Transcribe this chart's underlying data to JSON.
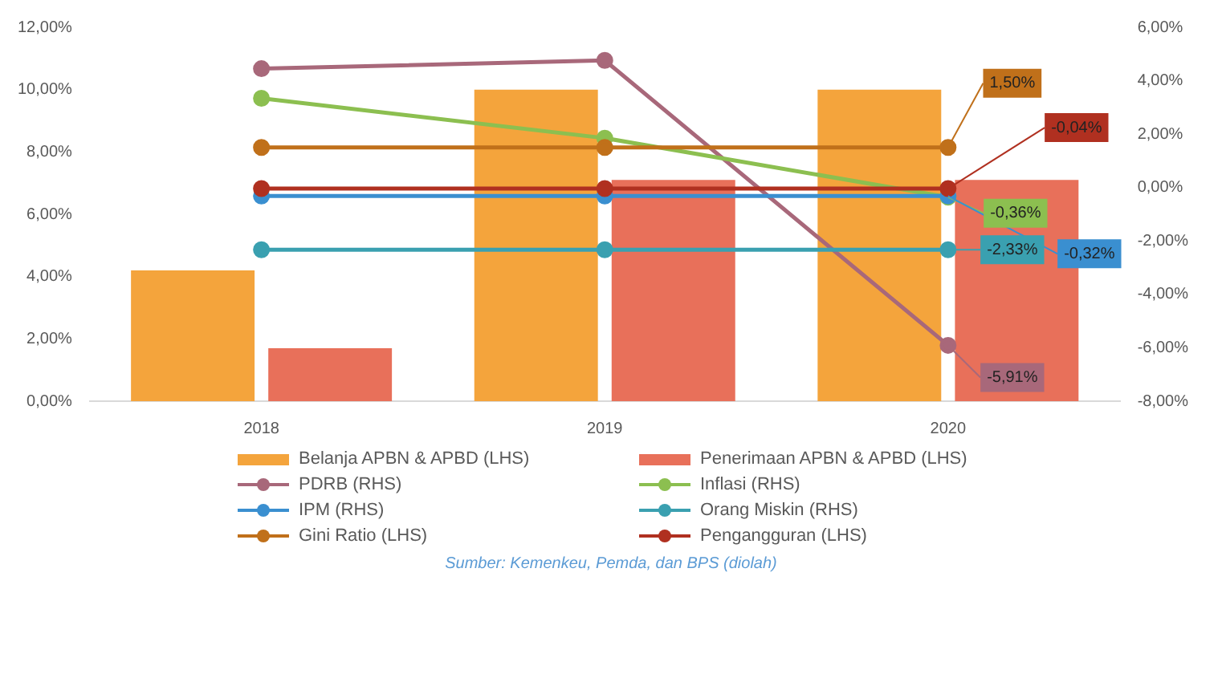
{
  "chart_data": {
    "type": "bar",
    "categories": [
      "2018",
      "2019",
      "2020"
    ],
    "series": [
      {
        "name": "Belanja APBN & APBD (LHS)",
        "color": "#f4a43c",
        "values": [
          4.2,
          10.0,
          10.0
        ]
      },
      {
        "name": "Penerimaan APBN & APBD (LHS)",
        "color": "#e8705a",
        "values": [
          1.7,
          7.1,
          7.1
        ]
      },
      {
        "name": "PDRB (RHS)",
        "type": "line",
        "axis": "y2",
        "color": "#a8687a",
        "values": [
          4.45,
          4.76,
          -5.91
        ],
        "value_labels": [
          null,
          null,
          "-5,91%"
        ]
      },
      {
        "name": "Inflasi (RHS)",
        "type": "line",
        "axis": "y2",
        "color": "#8cbf50",
        "values": [
          3.34,
          1.85,
          -0.36
        ],
        "value_labels": [
          null,
          null,
          "-0,36%"
        ]
      },
      {
        "name": "IPM (RHS)",
        "type": "line",
        "axis": "y2",
        "color": "#3a8fd0",
        "values": [
          -0.32,
          -0.32,
          -0.32
        ],
        "value_labels": [
          null,
          null,
          "-0,32%"
        ]
      },
      {
        "name": "Orang Miskin (RHS)",
        "type": "line",
        "axis": "y2",
        "color": "#3aa0b0",
        "values": [
          -2.33,
          -2.33,
          -2.33
        ],
        "value_labels": [
          null,
          null,
          "-2,33%"
        ]
      },
      {
        "name": "Gini Ratio (LHS)",
        "type": "line",
        "axis": "y2",
        "color": "#c0701a",
        "values": [
          1.5,
          1.5,
          1.5
        ],
        "value_labels": [
          null,
          null,
          "1,50%"
        ]
      },
      {
        "name": "Pengangguran (LHS)",
        "type": "line",
        "axis": "y2",
        "color": "#b03020",
        "values": [
          -0.04,
          -0.04,
          -0.04
        ],
        "value_labels": [
          null,
          null,
          "-0,04%"
        ]
      }
    ],
    "ylim": [
      0,
      12
    ],
    "yticks": [
      {
        "value": 0,
        "label": "0,00%"
      },
      {
        "value": 2,
        "label": "2,00%"
      },
      {
        "value": 4,
        "label": "4,00%"
      },
      {
        "value": 6,
        "label": "6,00%"
      },
      {
        "value": 8,
        "label": "8,00%"
      },
      {
        "value": 10,
        "label": "10,00%"
      },
      {
        "value": 12,
        "label": "12,00%"
      }
    ],
    "y2lim": [
      -8,
      6
    ],
    "y2ticks": [
      {
        "value": -8,
        "label": "-8,00%"
      },
      {
        "value": -6,
        "label": "-6,00%"
      },
      {
        "value": -4,
        "label": "-4,00%"
      },
      {
        "value": -2,
        "label": "-2,00%"
      },
      {
        "value": 0,
        "label": "0,00%"
      },
      {
        "value": 2,
        "label": "2,00%"
      },
      {
        "value": 4,
        "label": "4,00%"
      },
      {
        "value": 6,
        "label": "6,00%"
      }
    ],
    "grid": false,
    "legend": "bottom",
    "marker": "circle",
    "line_style": "solid",
    "annotations": [
      "Sumber: Kemenkeu, Pemda, dan BPS (diolah)"
    ]
  }
}
